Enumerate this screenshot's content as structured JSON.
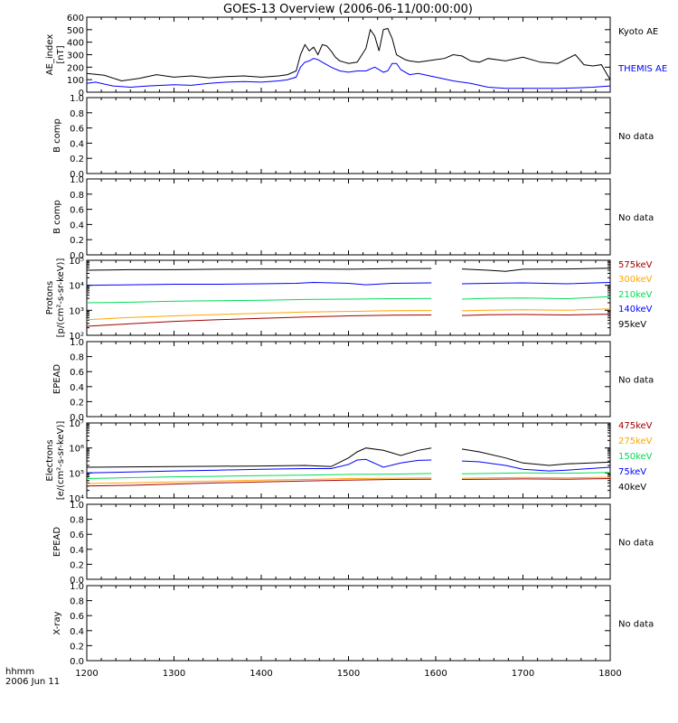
{
  "title": "GOES-13 Overview (2006-06-11/00:00:00)",
  "x_axis": {
    "ticks": [
      "1200",
      "1300",
      "1400",
      "1500",
      "1600",
      "1700",
      "1800"
    ],
    "label_line1": "hhmm",
    "label_line2": "2006 Jun 11"
  },
  "chart_data": [
    {
      "type": "line",
      "ylabel_lines": [
        "AE_index",
        "[nT]"
      ],
      "x_range": [
        12.0,
        18.0
      ],
      "ylim": [
        0,
        600
      ],
      "scale": "linear",
      "y_ticks": [
        "0",
        "100",
        "200",
        "300",
        "400",
        "500",
        "600"
      ],
      "y_tick_values": [
        0,
        100,
        200,
        300,
        400,
        500,
        600
      ],
      "series": [
        {
          "name": "Kyoto AE",
          "color": "#000000",
          "x": [
            12.0,
            12.2,
            12.4,
            12.6,
            12.8,
            13.0,
            13.2,
            13.4,
            13.6,
            13.8,
            14.0,
            14.2,
            14.3,
            14.4,
            14.45,
            14.5,
            14.55,
            14.6,
            14.65,
            14.7,
            14.75,
            14.8,
            14.85,
            14.9,
            14.95,
            15.0,
            15.1,
            15.2,
            15.25,
            15.3,
            15.35,
            15.4,
            15.45,
            15.5,
            15.55,
            15.6,
            15.65,
            15.7,
            15.8,
            15.9,
            16.0,
            16.1,
            16.2,
            16.3,
            16.4,
            16.5,
            16.6,
            16.8,
            17.0,
            17.2,
            17.4,
            17.6,
            17.7,
            17.8,
            17.9,
            18.0
          ],
          "y": [
            150,
            135,
            90,
            110,
            140,
            120,
            130,
            115,
            125,
            130,
            120,
            130,
            140,
            170,
            300,
            380,
            330,
            360,
            300,
            380,
            370,
            330,
            280,
            250,
            240,
            230,
            240,
            350,
            500,
            450,
            330,
            500,
            510,
            430,
            300,
            280,
            260,
            250,
            240,
            250,
            260,
            270,
            300,
            290,
            250,
            240,
            270,
            250,
            280,
            240,
            230,
            300,
            220,
            210,
            220,
            100
          ]
        },
        {
          "name": "THEMIS AE",
          "color": "#0000ff",
          "x": [
            12.0,
            12.1,
            12.3,
            12.5,
            12.7,
            13.0,
            13.2,
            13.4,
            13.6,
            13.8,
            14.0,
            14.2,
            14.3,
            14.4,
            14.45,
            14.5,
            14.55,
            14.6,
            14.65,
            14.7,
            14.8,
            14.9,
            15.0,
            15.1,
            15.2,
            15.3,
            15.35,
            15.4,
            15.45,
            15.5,
            15.55,
            15.6,
            15.7,
            15.8,
            16.0,
            16.2,
            16.4,
            16.6,
            16.8,
            17.0,
            17.2,
            17.4,
            17.6,
            17.8,
            18.0
          ],
          "y": [
            70,
            80,
            50,
            40,
            50,
            60,
            55,
            70,
            80,
            85,
            80,
            90,
            100,
            120,
            200,
            240,
            250,
            270,
            260,
            240,
            200,
            170,
            160,
            170,
            170,
            200,
            180,
            160,
            170,
            230,
            230,
            180,
            140,
            150,
            120,
            90,
            70,
            40,
            30,
            30,
            30,
            30,
            35,
            40,
            50
          ]
        }
      ]
    },
    {
      "type": "line",
      "ylabel_lines": [
        "B comp"
      ],
      "ylim": [
        0,
        1
      ],
      "y_ticks": [
        "0.0",
        "0.2",
        "0.4",
        "0.6",
        "0.8",
        "1.0"
      ],
      "y_tick_values": [
        0,
        0.2,
        0.4,
        0.6,
        0.8,
        1.0
      ],
      "series": [],
      "no_data_text": "No data"
    },
    {
      "type": "line",
      "ylabel_lines": [
        "B comp"
      ],
      "ylim": [
        0,
        1
      ],
      "y_ticks": [
        "0.0",
        "0.2",
        "0.4",
        "0.6",
        "0.8",
        "1.0"
      ],
      "y_tick_values": [
        0,
        0.2,
        0.4,
        0.6,
        0.8,
        1.0
      ],
      "series": [],
      "no_data_text": "No data"
    },
    {
      "type": "line",
      "ylabel_lines": [
        "Protons",
        "[p/(cm²-s-sr-keV)]"
      ],
      "x_range": [
        12.0,
        18.0
      ],
      "ylim": [
        100,
        100000
      ],
      "scale": "log",
      "y_ticks": [
        "10²",
        "10³",
        "10⁴",
        "10⁵"
      ],
      "y_tick_values": [
        100,
        1000,
        10000,
        100000
      ],
      "gap": [
        16.0,
        16.28
      ],
      "series": [
        {
          "name": "575keV",
          "color": "#a00000",
          "x": [
            12.0,
            12.5,
            13.0,
            13.5,
            14.0,
            14.5,
            15.0,
            15.5,
            15.95,
            16.3,
            16.6,
            17.0,
            17.5,
            18.0
          ],
          "y": [
            230,
            290,
            360,
            420,
            480,
            540,
            600,
            640,
            650,
            620,
            660,
            680,
            650,
            700
          ]
        },
        {
          "name": "300keV",
          "color": "#ffa500",
          "x": [
            12.0,
            12.5,
            13.0,
            13.5,
            14.0,
            14.5,
            15.0,
            15.5,
            15.95,
            16.3,
            16.6,
            17.0,
            17.5,
            18.0
          ],
          "y": [
            420,
            520,
            600,
            680,
            760,
            850,
            900,
            960,
            980,
            950,
            1000,
            1050,
            1000,
            1150
          ]
        },
        {
          "name": "210keV",
          "color": "#00dd55",
          "x": [
            12.0,
            12.5,
            13.0,
            13.5,
            14.0,
            14.5,
            15.0,
            15.5,
            15.95,
            16.3,
            16.6,
            17.0,
            17.5,
            18.0
          ],
          "y": [
            2000,
            2100,
            2300,
            2400,
            2500,
            2700,
            2800,
            2900,
            2950,
            2800,
            3000,
            3100,
            2900,
            3500
          ]
        },
        {
          "name": "140keV",
          "color": "#0000ff",
          "x": [
            12.0,
            12.5,
            13.0,
            13.5,
            14.0,
            14.4,
            14.6,
            15.0,
            15.2,
            15.5,
            15.95,
            16.3,
            16.6,
            17.0,
            17.5,
            18.0
          ],
          "y": [
            10000,
            10500,
            11000,
            11000,
            11500,
            12000,
            13000,
            12000,
            10500,
            12000,
            12500,
            11500,
            12000,
            12500,
            11500,
            13000
          ]
        },
        {
          "name": "95keV",
          "color": "#000000",
          "x": [
            12.0,
            12.5,
            13.0,
            13.5,
            14.0,
            14.5,
            15.0,
            15.5,
            15.95,
            16.3,
            16.6,
            16.8,
            17.0,
            17.5,
            18.0
          ],
          "y": [
            40000,
            42000,
            42000,
            44000,
            45000,
            45000,
            44000,
            46000,
            47000,
            45000,
            40000,
            36000,
            44000,
            45000,
            48000
          ]
        }
      ]
    },
    {
      "type": "line",
      "ylabel_lines": [
        "EPEAD"
      ],
      "ylim": [
        0,
        1
      ],
      "y_ticks": [
        "0.0",
        "0.2",
        "0.4",
        "0.6",
        "0.8",
        "1.0"
      ],
      "y_tick_values": [
        0,
        0.2,
        0.4,
        0.6,
        0.8,
        1.0
      ],
      "series": [],
      "no_data_text": "No data"
    },
    {
      "type": "line",
      "ylabel_lines": [
        "Electrons",
        "[e/(cm²-s-sr-keV)]"
      ],
      "x_range": [
        12.0,
        18.0
      ],
      "ylim": [
        10000,
        10000000
      ],
      "scale": "log",
      "y_ticks": [
        "10⁴",
        "10⁵",
        "10⁶",
        "10⁷"
      ],
      "y_tick_values": [
        10000,
        100000,
        1000000,
        10000000
      ],
      "gap": [
        16.0,
        16.28
      ],
      "series": [
        {
          "name": "475keV",
          "color": "#a00000",
          "x": [
            12.0,
            12.5,
            13.0,
            13.5,
            14.0,
            14.5,
            15.0,
            15.5,
            15.95,
            16.3,
            16.6,
            17.0,
            17.5,
            18.0
          ],
          "y": [
            30000,
            32000,
            36000,
            40000,
            44000,
            48000,
            52000,
            55000,
            56000,
            55000,
            56000,
            58000,
            56000,
            60000
          ]
        },
        {
          "name": "275keV",
          "color": "#ffa500",
          "x": [
            12.0,
            12.5,
            13.0,
            13.5,
            14.0,
            14.5,
            15.0,
            15.5,
            15.95,
            16.3,
            16.6,
            17.0,
            17.5,
            18.0
          ],
          "y": [
            38000,
            40000,
            44000,
            48000,
            52000,
            55000,
            60000,
            62000,
            64000,
            62000,
            64000,
            66000,
            64000,
            68000
          ]
        },
        {
          "name": "150keV",
          "color": "#00dd55",
          "x": [
            12.0,
            12.5,
            13.0,
            13.5,
            14.0,
            14.5,
            15.0,
            15.5,
            15.95,
            16.3,
            16.6,
            17.0,
            17.5,
            18.0
          ],
          "y": [
            60000,
            65000,
            70000,
            74000,
            78000,
            82000,
            88000,
            90000,
            95000,
            92000,
            95000,
            100000,
            98000,
            105000
          ]
        },
        {
          "name": "75keV",
          "color": "#0000ff",
          "x": [
            12.0,
            12.5,
            13.0,
            13.5,
            14.0,
            14.5,
            14.8,
            15.0,
            15.1,
            15.2,
            15.4,
            15.6,
            15.8,
            15.95,
            16.3,
            16.5,
            16.8,
            17.0,
            17.3,
            17.5,
            18.0
          ],
          "y": [
            100000,
            110000,
            120000,
            130000,
            140000,
            150000,
            150000,
            220000,
            330000,
            350000,
            170000,
            250000,
            320000,
            330000,
            300000,
            280000,
            200000,
            140000,
            120000,
            130000,
            170000
          ]
        },
        {
          "name": "40keV",
          "color": "#000000",
          "x": [
            12.0,
            12.5,
            13.0,
            13.5,
            14.0,
            14.5,
            14.8,
            15.0,
            15.1,
            15.2,
            15.4,
            15.6,
            15.8,
            15.95,
            16.3,
            16.5,
            16.8,
            17.0,
            17.3,
            17.5,
            18.0
          ],
          "y": [
            170000,
            175000,
            180000,
            185000,
            190000,
            200000,
            180000,
            400000,
            700000,
            1000000,
            800000,
            500000,
            800000,
            1000000,
            900000,
            700000,
            400000,
            250000,
            200000,
            230000,
            270000
          ]
        }
      ]
    },
    {
      "type": "line",
      "ylabel_lines": [
        "EPEAD"
      ],
      "ylim": [
        0,
        1
      ],
      "y_ticks": [
        "0.0",
        "0.2",
        "0.4",
        "0.6",
        "0.8",
        "1.0"
      ],
      "y_tick_values": [
        0,
        0.2,
        0.4,
        0.6,
        0.8,
        1.0
      ],
      "series": [],
      "no_data_text": "No data"
    },
    {
      "type": "line",
      "ylabel_lines": [
        "X-ray"
      ],
      "ylim": [
        0,
        1
      ],
      "y_ticks": [
        "0.0",
        "0.2",
        "0.4",
        "0.6",
        "0.8",
        "1.0"
      ],
      "y_tick_values": [
        0,
        0.2,
        0.4,
        0.6,
        0.8,
        1.0
      ],
      "series": [],
      "no_data_text": "No data"
    }
  ]
}
